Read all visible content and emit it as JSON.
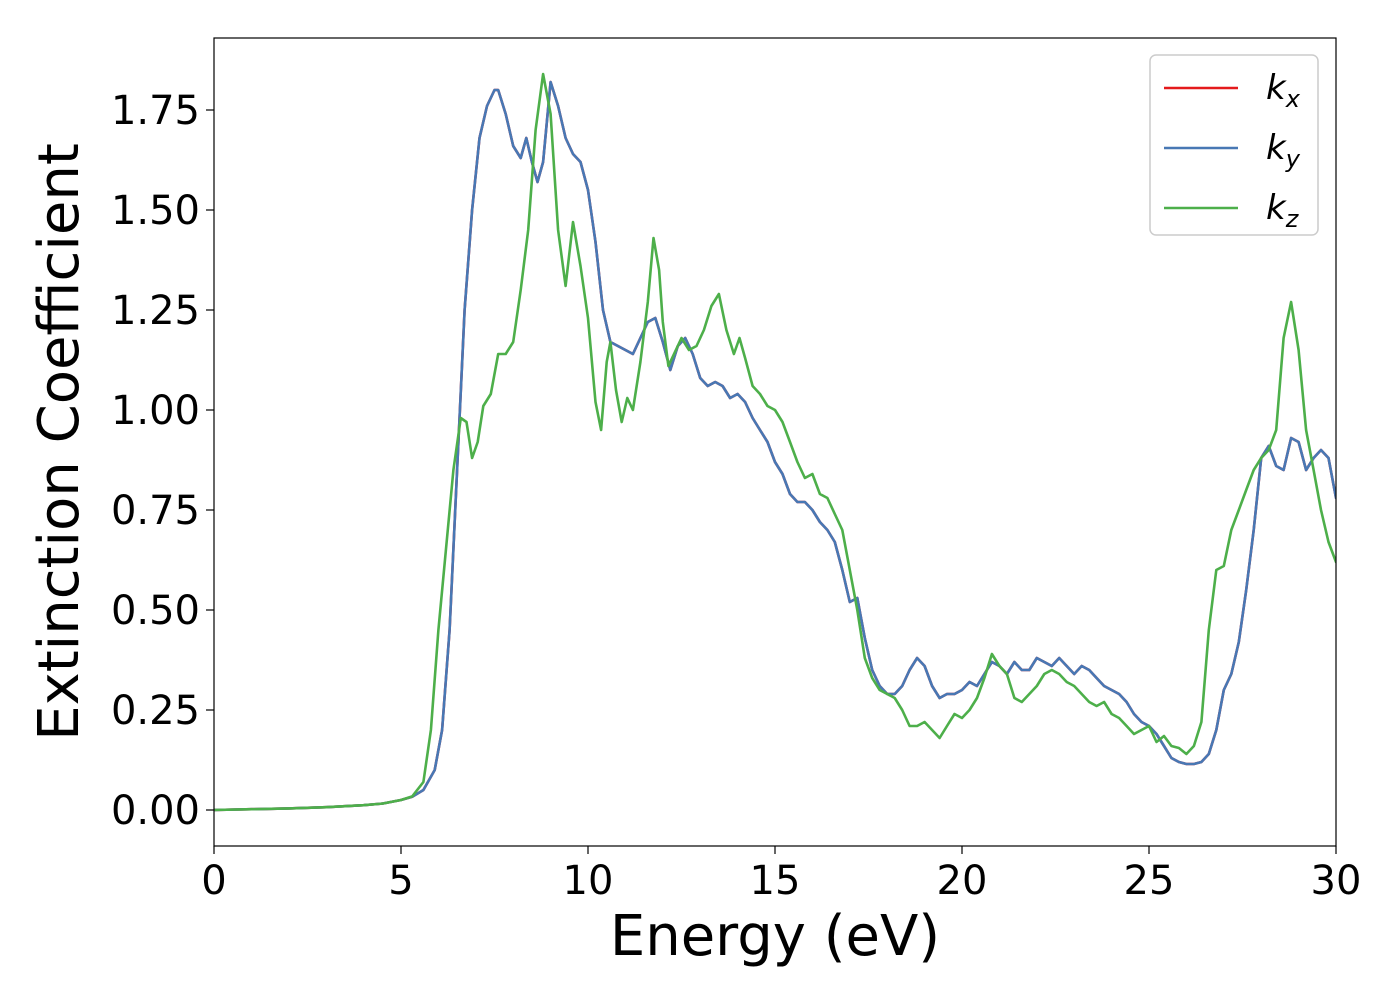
{
  "chart_data": {
    "type": "line",
    "xlabel": "Energy (eV)",
    "ylabel": "Extinction Coefficient",
    "xlim": [
      0,
      30
    ],
    "ylim": [
      -0.09,
      1.93
    ],
    "xticks": [
      0,
      5,
      10,
      15,
      20,
      25,
      30
    ],
    "xtick_labels": [
      "0",
      "5",
      "10",
      "15",
      "20",
      "25",
      "30"
    ],
    "yticks": [
      0.0,
      0.25,
      0.5,
      0.75,
      1.0,
      1.25,
      1.5,
      1.75
    ],
    "ytick_labels": [
      "0.00",
      "0.25",
      "0.50",
      "0.75",
      "1.00",
      "1.25",
      "1.50",
      "1.75"
    ],
    "grid": false,
    "legend_position": "top-right",
    "series": [
      {
        "name": "k_x",
        "label_base": "k",
        "label_sub": "x",
        "color": "#e41a1c",
        "x": [
          0,
          1,
          2,
          3,
          4,
          4.5,
          5,
          5.3,
          5.6,
          5.9,
          6.1,
          6.3,
          6.5,
          6.7,
          6.9,
          7.1,
          7.3,
          7.5,
          7.6,
          7.8,
          8.0,
          8.2,
          8.35,
          8.5,
          8.65,
          8.8,
          9.0,
          9.2,
          9.4,
          9.6,
          9.8,
          10.0,
          10.2,
          10.4,
          10.6,
          10.8,
          11.0,
          11.2,
          11.4,
          11.6,
          11.8,
          12.0,
          12.2,
          12.4,
          12.6,
          12.8,
          13.0,
          13.2,
          13.4,
          13.6,
          13.8,
          14.0,
          14.2,
          14.4,
          14.6,
          14.8,
          15.0,
          15.2,
          15.4,
          15.6,
          15.8,
          16.0,
          16.2,
          16.4,
          16.6,
          16.8,
          17.0,
          17.2,
          17.4,
          17.6,
          17.8,
          18.0,
          18.2,
          18.4,
          18.6,
          18.8,
          19.0,
          19.2,
          19.4,
          19.6,
          19.8,
          20.0,
          20.2,
          20.4,
          20.6,
          20.8,
          21.0,
          21.2,
          21.4,
          21.6,
          21.8,
          22.0,
          22.2,
          22.4,
          22.6,
          22.8,
          23.0,
          23.2,
          23.4,
          23.6,
          23.8,
          24.0,
          24.2,
          24.4,
          24.6,
          24.8,
          25.0,
          25.2,
          25.4,
          25.6,
          25.8,
          26.0,
          26.2,
          26.4,
          26.6,
          26.8,
          27.0,
          27.2,
          27.4,
          27.6,
          27.8,
          28.0,
          28.2,
          28.4,
          28.6,
          28.8,
          29.0,
          29.2,
          29.4,
          29.6,
          29.8,
          30.0
        ],
        "y": [
          0.0,
          0.002,
          0.004,
          0.007,
          0.012,
          0.016,
          0.025,
          0.033,
          0.05,
          0.1,
          0.2,
          0.45,
          0.85,
          1.25,
          1.5,
          1.68,
          1.76,
          1.8,
          1.8,
          1.74,
          1.66,
          1.63,
          1.68,
          1.62,
          1.57,
          1.62,
          1.82,
          1.76,
          1.68,
          1.64,
          1.62,
          1.55,
          1.42,
          1.25,
          1.17,
          1.16,
          1.15,
          1.14,
          1.18,
          1.22,
          1.23,
          1.17,
          1.1,
          1.16,
          1.18,
          1.14,
          1.08,
          1.06,
          1.07,
          1.06,
          1.03,
          1.04,
          1.02,
          0.98,
          0.95,
          0.92,
          0.87,
          0.84,
          0.79,
          0.77,
          0.77,
          0.75,
          0.72,
          0.7,
          0.67,
          0.6,
          0.52,
          0.53,
          0.43,
          0.35,
          0.31,
          0.29,
          0.29,
          0.31,
          0.35,
          0.38,
          0.36,
          0.31,
          0.28,
          0.29,
          0.29,
          0.3,
          0.32,
          0.31,
          0.34,
          0.37,
          0.36,
          0.34,
          0.37,
          0.35,
          0.35,
          0.38,
          0.37,
          0.36,
          0.38,
          0.36,
          0.34,
          0.36,
          0.35,
          0.33,
          0.31,
          0.3,
          0.29,
          0.27,
          0.24,
          0.22,
          0.21,
          0.19,
          0.16,
          0.13,
          0.12,
          0.115,
          0.115,
          0.12,
          0.14,
          0.2,
          0.3,
          0.34,
          0.42,
          0.55,
          0.7,
          0.88,
          0.91,
          0.86,
          0.85,
          0.93,
          0.92,
          0.85,
          0.88,
          0.9,
          0.88,
          0.78
        ]
      },
      {
        "name": "k_y",
        "label_base": "k",
        "label_sub": "y",
        "color": "#4878b4",
        "x": [
          0,
          1,
          2,
          3,
          4,
          4.5,
          5,
          5.3,
          5.6,
          5.9,
          6.1,
          6.3,
          6.5,
          6.7,
          6.9,
          7.1,
          7.3,
          7.5,
          7.6,
          7.8,
          8.0,
          8.2,
          8.35,
          8.5,
          8.65,
          8.8,
          9.0,
          9.2,
          9.4,
          9.6,
          9.8,
          10.0,
          10.2,
          10.4,
          10.6,
          10.8,
          11.0,
          11.2,
          11.4,
          11.6,
          11.8,
          12.0,
          12.2,
          12.4,
          12.6,
          12.8,
          13.0,
          13.2,
          13.4,
          13.6,
          13.8,
          14.0,
          14.2,
          14.4,
          14.6,
          14.8,
          15.0,
          15.2,
          15.4,
          15.6,
          15.8,
          16.0,
          16.2,
          16.4,
          16.6,
          16.8,
          17.0,
          17.2,
          17.4,
          17.6,
          17.8,
          18.0,
          18.2,
          18.4,
          18.6,
          18.8,
          19.0,
          19.2,
          19.4,
          19.6,
          19.8,
          20.0,
          20.2,
          20.4,
          20.6,
          20.8,
          21.0,
          21.2,
          21.4,
          21.6,
          21.8,
          22.0,
          22.2,
          22.4,
          22.6,
          22.8,
          23.0,
          23.2,
          23.4,
          23.6,
          23.8,
          24.0,
          24.2,
          24.4,
          24.6,
          24.8,
          25.0,
          25.2,
          25.4,
          25.6,
          25.8,
          26.0,
          26.2,
          26.4,
          26.6,
          26.8,
          27.0,
          27.2,
          27.4,
          27.6,
          27.8,
          28.0,
          28.2,
          28.4,
          28.6,
          28.8,
          29.0,
          29.2,
          29.4,
          29.6,
          29.8,
          30.0
        ],
        "y": [
          0.0,
          0.002,
          0.004,
          0.007,
          0.012,
          0.016,
          0.025,
          0.033,
          0.05,
          0.1,
          0.2,
          0.45,
          0.85,
          1.25,
          1.5,
          1.68,
          1.76,
          1.8,
          1.8,
          1.74,
          1.66,
          1.63,
          1.68,
          1.62,
          1.57,
          1.62,
          1.82,
          1.76,
          1.68,
          1.64,
          1.62,
          1.55,
          1.42,
          1.25,
          1.17,
          1.16,
          1.15,
          1.14,
          1.18,
          1.22,
          1.23,
          1.17,
          1.1,
          1.16,
          1.18,
          1.14,
          1.08,
          1.06,
          1.07,
          1.06,
          1.03,
          1.04,
          1.02,
          0.98,
          0.95,
          0.92,
          0.87,
          0.84,
          0.79,
          0.77,
          0.77,
          0.75,
          0.72,
          0.7,
          0.67,
          0.6,
          0.52,
          0.53,
          0.43,
          0.35,
          0.31,
          0.29,
          0.29,
          0.31,
          0.35,
          0.38,
          0.36,
          0.31,
          0.28,
          0.29,
          0.29,
          0.3,
          0.32,
          0.31,
          0.34,
          0.37,
          0.36,
          0.34,
          0.37,
          0.35,
          0.35,
          0.38,
          0.37,
          0.36,
          0.38,
          0.36,
          0.34,
          0.36,
          0.35,
          0.33,
          0.31,
          0.3,
          0.29,
          0.27,
          0.24,
          0.22,
          0.21,
          0.19,
          0.16,
          0.13,
          0.12,
          0.115,
          0.115,
          0.12,
          0.14,
          0.2,
          0.3,
          0.34,
          0.42,
          0.55,
          0.7,
          0.88,
          0.91,
          0.86,
          0.85,
          0.93,
          0.92,
          0.85,
          0.88,
          0.9,
          0.88,
          0.78
        ]
      },
      {
        "name": "k_z",
        "label_base": "k",
        "label_sub": "z",
        "color": "#4daf4a",
        "x": [
          0,
          1,
          2,
          3,
          4,
          4.5,
          5,
          5.3,
          5.6,
          5.8,
          6.0,
          6.2,
          6.4,
          6.6,
          6.75,
          6.9,
          7.05,
          7.2,
          7.4,
          7.6,
          7.8,
          8.0,
          8.2,
          8.4,
          8.6,
          8.8,
          9.0,
          9.2,
          9.4,
          9.6,
          9.8,
          10.0,
          10.2,
          10.35,
          10.5,
          10.6,
          10.75,
          10.9,
          11.05,
          11.2,
          11.4,
          11.6,
          11.75,
          11.9,
          12.0,
          12.15,
          12.3,
          12.5,
          12.7,
          12.9,
          13.1,
          13.3,
          13.5,
          13.7,
          13.9,
          14.05,
          14.2,
          14.4,
          14.6,
          14.8,
          15.0,
          15.2,
          15.4,
          15.6,
          15.8,
          16.0,
          16.2,
          16.4,
          16.6,
          16.8,
          17.0,
          17.2,
          17.4,
          17.6,
          17.8,
          18.0,
          18.2,
          18.4,
          18.6,
          18.8,
          19.0,
          19.2,
          19.4,
          19.6,
          19.8,
          20.0,
          20.2,
          20.4,
          20.6,
          20.8,
          21.0,
          21.2,
          21.4,
          21.6,
          21.8,
          22.0,
          22.2,
          22.4,
          22.6,
          22.8,
          23.0,
          23.2,
          23.4,
          23.6,
          23.8,
          24.0,
          24.2,
          24.4,
          24.6,
          24.8,
          25.0,
          25.2,
          25.4,
          25.6,
          25.8,
          26.0,
          26.2,
          26.4,
          26.6,
          26.8,
          27.0,
          27.2,
          27.4,
          27.6,
          27.8,
          28.0,
          28.2,
          28.4,
          28.6,
          28.8,
          29.0,
          29.2,
          29.4,
          29.6,
          29.8,
          30.0
        ],
        "y": [
          0.0,
          0.002,
          0.004,
          0.007,
          0.012,
          0.016,
          0.025,
          0.034,
          0.07,
          0.2,
          0.45,
          0.65,
          0.85,
          0.98,
          0.97,
          0.88,
          0.92,
          1.01,
          1.04,
          1.14,
          1.14,
          1.17,
          1.3,
          1.45,
          1.7,
          1.84,
          1.74,
          1.45,
          1.31,
          1.47,
          1.36,
          1.23,
          1.02,
          0.95,
          1.12,
          1.17,
          1.05,
          0.97,
          1.03,
          1.0,
          1.12,
          1.27,
          1.43,
          1.35,
          1.22,
          1.11,
          1.14,
          1.18,
          1.15,
          1.16,
          1.2,
          1.26,
          1.29,
          1.2,
          1.14,
          1.18,
          1.13,
          1.06,
          1.04,
          1.01,
          1.0,
          0.97,
          0.92,
          0.87,
          0.83,
          0.84,
          0.79,
          0.78,
          0.74,
          0.7,
          0.6,
          0.5,
          0.38,
          0.33,
          0.3,
          0.29,
          0.28,
          0.25,
          0.21,
          0.21,
          0.22,
          0.2,
          0.18,
          0.21,
          0.24,
          0.23,
          0.25,
          0.28,
          0.33,
          0.39,
          0.36,
          0.34,
          0.28,
          0.27,
          0.29,
          0.31,
          0.34,
          0.35,
          0.34,
          0.32,
          0.31,
          0.29,
          0.27,
          0.26,
          0.27,
          0.24,
          0.23,
          0.21,
          0.19,
          0.2,
          0.21,
          0.17,
          0.185,
          0.16,
          0.155,
          0.14,
          0.16,
          0.22,
          0.45,
          0.6,
          0.61,
          0.7,
          0.75,
          0.8,
          0.85,
          0.88,
          0.9,
          0.95,
          1.18,
          1.27,
          1.15,
          0.95,
          0.85,
          0.75,
          0.67,
          0.62
        ]
      }
    ]
  }
}
